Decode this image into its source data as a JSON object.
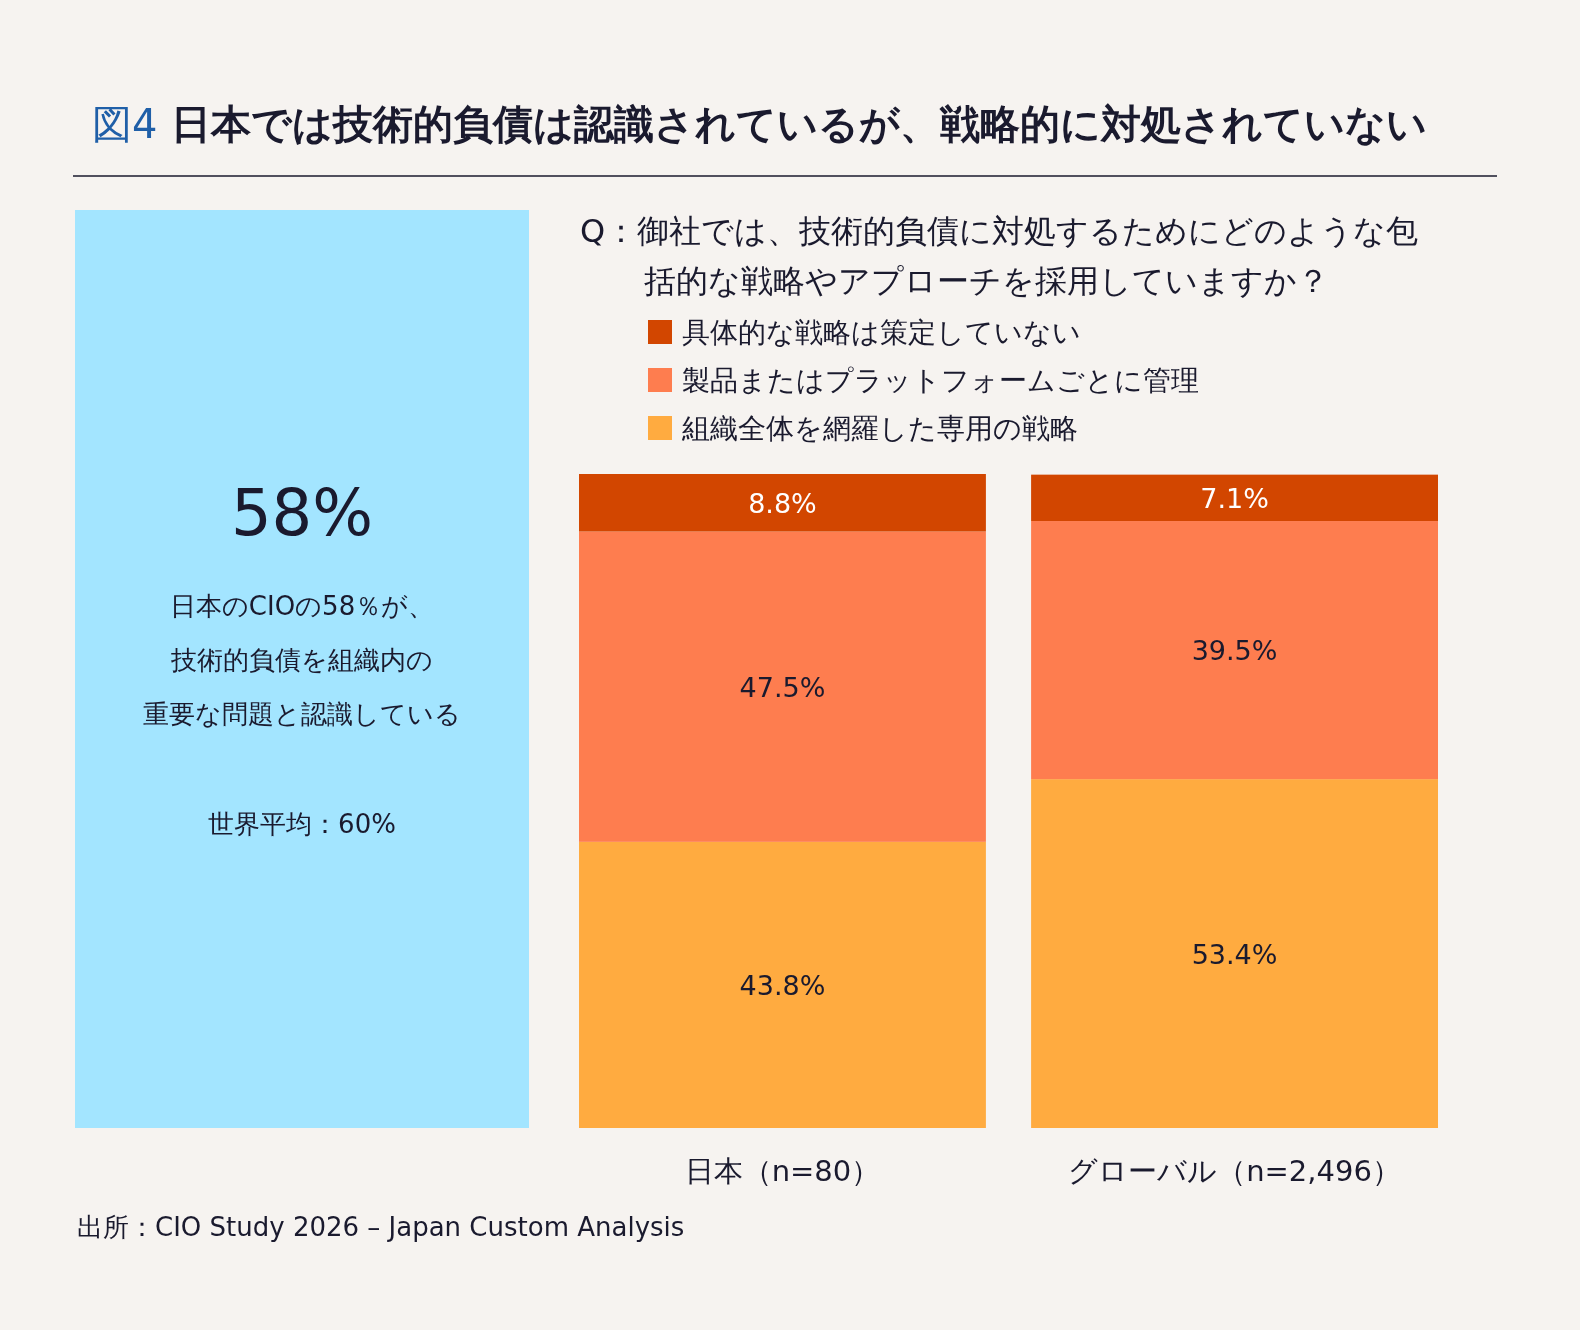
{
  "chart_data": [
    {
      "type": "other",
      "annotations": [
        "58%",
        "日本のCIOの58％が、",
        "技術的負債を組織内の",
        "重要な問題と認識している",
        "世界平均：60%"
      ],
      "color": "#a3e5ff"
    },
    {
      "type": "bar",
      "title": "図4 日本では技術的負債は認識されているが、戦略的に対処されていない",
      "subtitle": "Q：御社では、技術的負債に対処するためにどのような包括的な戦略やアプローチを採用していますか？",
      "categories": [
        "日本（n=80）",
        "グローバル（n=2,496）"
      ],
      "stacked": true,
      "legend": "top",
      "series": [
        {
          "name": "組織全体を網羅した専用の戦略",
          "color": "#ffab40",
          "values": [
            43.8,
            53.4
          ],
          "value_labels": [
            "43.8%",
            "53.4%"
          ]
        },
        {
          "name": "製品またはプラットフォームごとに管理",
          "color": "#fe7d4f",
          "values": [
            47.5,
            39.5
          ],
          "value_labels": [
            "47.5%",
            "39.5%"
          ]
        },
        {
          "name": "具体的な戦略は策定していない",
          "color": "#d24600",
          "values": [
            8.8,
            7.1
          ],
          "value_labels": [
            "8.8%",
            "7.1%"
          ]
        }
      ],
      "annotations": [
        "出所：CIO Study 2026 – Japan Custom Analysis"
      ]
    }
  ]
}
